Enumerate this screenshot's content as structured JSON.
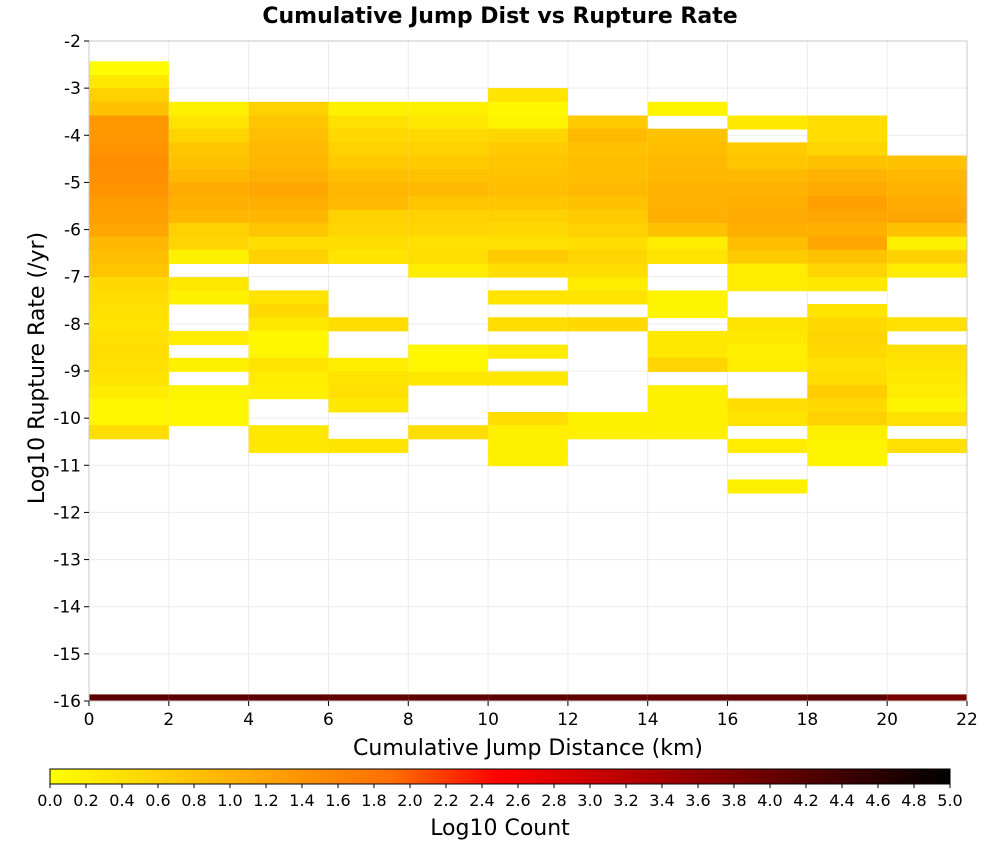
{
  "chart_data": {
    "type": "heatmap",
    "title": "Cumulative Jump Dist vs Rupture Rate",
    "xlabel": "Cumulative Jump Distance (km)",
    "ylabel": "Log10 Rupture Rate (/yr)",
    "xlim": [
      0,
      22
    ],
    "ylim": [
      -16,
      -2
    ],
    "x_ticks": [
      "0",
      "2",
      "4",
      "6",
      "8",
      "10",
      "12",
      "14",
      "16",
      "18",
      "20",
      "22"
    ],
    "y_ticks": [
      "-2",
      "-3",
      "-4",
      "-5",
      "-6",
      "-7",
      "-8",
      "-9",
      "-10",
      "-11",
      "-12",
      "-13",
      "-14",
      "-15",
      "-16"
    ],
    "grid": true,
    "x_bin_width": 2,
    "y_bin_height": 0.2863,
    "colorbar": {
      "label": "Log10 Count",
      "range": [
        0,
        5
      ],
      "ticks": [
        "0.0",
        "0.2",
        "0.4",
        "0.6",
        "0.8",
        "1.0",
        "1.2",
        "1.4",
        "1.6",
        "1.8",
        "2.0",
        "2.2",
        "2.4",
        "2.6",
        "2.8",
        "3.0",
        "3.2",
        "3.4",
        "3.6",
        "3.8",
        "4.0",
        "4.2",
        "4.4",
        "4.6",
        "4.8",
        "5.0"
      ],
      "placement": "bottom"
    },
    "columns": [
      {
        "x": 0,
        "cells": [
          [
            -2.43,
            0.05
          ],
          [
            -2.72,
            0.3
          ],
          [
            -3.0,
            0.6
          ],
          [
            -3.29,
            0.8
          ],
          [
            -3.58,
            1.35
          ],
          [
            -3.86,
            1.35
          ],
          [
            -4.15,
            1.4
          ],
          [
            -4.43,
            1.5
          ],
          [
            -4.72,
            1.45
          ],
          [
            -5.0,
            1.4
          ],
          [
            -5.29,
            1.3
          ],
          [
            -5.58,
            1.25
          ],
          [
            -5.86,
            1.15
          ],
          [
            -6.15,
            0.95
          ],
          [
            -6.43,
            0.85
          ],
          [
            -6.72,
            0.75
          ],
          [
            -7.01,
            0.5
          ],
          [
            -7.29,
            0.45
          ],
          [
            -7.58,
            0.4
          ],
          [
            -7.86,
            0.35
          ],
          [
            -8.15,
            0.4
          ],
          [
            -8.44,
            0.45
          ],
          [
            -8.72,
            0.4
          ],
          [
            -9.01,
            0.35
          ],
          [
            -9.3,
            0.25
          ],
          [
            -9.58,
            0.12
          ],
          [
            -9.87,
            0.1
          ],
          [
            -10.15,
            0.45
          ]
        ]
      },
      {
        "x": 2,
        "cells": [
          [
            -3.29,
            0.2
          ],
          [
            -3.58,
            0.35
          ],
          [
            -3.86,
            0.55
          ],
          [
            -4.15,
            0.75
          ],
          [
            -4.43,
            0.8
          ],
          [
            -4.72,
            0.95
          ],
          [
            -5.0,
            1.1
          ],
          [
            -5.29,
            1.05
          ],
          [
            -5.58,
            0.95
          ],
          [
            -5.86,
            0.6
          ],
          [
            -6.15,
            0.55
          ],
          [
            -6.43,
            0.2
          ],
          [
            -7.01,
            0.3
          ],
          [
            -7.29,
            0.2
          ],
          [
            -8.15,
            0.25
          ],
          [
            -8.72,
            0.2
          ],
          [
            -9.3,
            0.15
          ],
          [
            -9.58,
            0.1
          ],
          [
            -9.87,
            0.1
          ]
        ]
      },
      {
        "x": 4,
        "cells": [
          [
            -3.29,
            0.6
          ],
          [
            -3.58,
            0.75
          ],
          [
            -3.86,
            0.85
          ],
          [
            -4.15,
            0.9
          ],
          [
            -4.43,
            0.95
          ],
          [
            -4.72,
            1.05
          ],
          [
            -5.0,
            1.15
          ],
          [
            -5.29,
            1.05
          ],
          [
            -5.58,
            0.95
          ],
          [
            -5.86,
            0.75
          ],
          [
            -6.15,
            0.45
          ],
          [
            -6.43,
            0.6
          ],
          [
            -7.29,
            0.35
          ],
          [
            -7.58,
            0.5
          ],
          [
            -7.86,
            0.3
          ],
          [
            -8.15,
            0.1
          ],
          [
            -8.44,
            0.1
          ],
          [
            -8.72,
            0.35
          ],
          [
            -9.01,
            0.25
          ],
          [
            -9.3,
            0.2
          ],
          [
            -10.15,
            0.3
          ],
          [
            -10.44,
            0.3
          ]
        ]
      },
      {
        "x": 6,
        "cells": [
          [
            -3.29,
            0.2
          ],
          [
            -3.58,
            0.4
          ],
          [
            -3.86,
            0.5
          ],
          [
            -4.15,
            0.6
          ],
          [
            -4.43,
            0.7
          ],
          [
            -4.72,
            0.85
          ],
          [
            -5.0,
            0.95
          ],
          [
            -5.29,
            0.9
          ],
          [
            -5.58,
            0.6
          ],
          [
            -5.86,
            0.55
          ],
          [
            -6.15,
            0.45
          ],
          [
            -6.43,
            0.35
          ],
          [
            -7.86,
            0.45
          ],
          [
            -8.72,
            0.25
          ],
          [
            -9.01,
            0.35
          ],
          [
            -9.3,
            0.4
          ],
          [
            -9.58,
            0.3
          ],
          [
            -10.44,
            0.35
          ]
        ]
      },
      {
        "x": 8,
        "cells": [
          [
            -3.29,
            0.2
          ],
          [
            -3.58,
            0.3
          ],
          [
            -3.86,
            0.5
          ],
          [
            -4.15,
            0.6
          ],
          [
            -4.43,
            0.7
          ],
          [
            -4.72,
            0.8
          ],
          [
            -5.0,
            0.9
          ],
          [
            -5.29,
            0.75
          ],
          [
            -5.58,
            0.6
          ],
          [
            -5.86,
            0.55
          ],
          [
            -6.15,
            0.4
          ],
          [
            -6.43,
            0.45
          ],
          [
            -6.72,
            0.25
          ],
          [
            -8.44,
            0.1
          ],
          [
            -8.72,
            0.1
          ],
          [
            -9.01,
            0.3
          ],
          [
            -10.15,
            0.45
          ]
        ]
      },
      {
        "x": 10,
        "cells": [
          [
            -3.0,
            0.35
          ],
          [
            -3.29,
            0.1
          ],
          [
            -3.58,
            0.15
          ],
          [
            -3.86,
            0.55
          ],
          [
            -4.15,
            0.7
          ],
          [
            -4.43,
            0.75
          ],
          [
            -4.72,
            0.8
          ],
          [
            -5.0,
            0.85
          ],
          [
            -5.29,
            0.75
          ],
          [
            -5.58,
            0.6
          ],
          [
            -5.86,
            0.5
          ],
          [
            -6.15,
            0.4
          ],
          [
            -6.43,
            0.7
          ],
          [
            -6.72,
            0.45
          ],
          [
            -7.29,
            0.35
          ],
          [
            -7.86,
            0.45
          ],
          [
            -8.44,
            0.25
          ],
          [
            -9.01,
            0.3
          ],
          [
            -9.87,
            0.45
          ],
          [
            -10.15,
            0.2
          ],
          [
            -10.44,
            0.2
          ],
          [
            -10.72,
            0.2
          ]
        ]
      },
      {
        "x": 12,
        "cells": [
          [
            -3.58,
            0.7
          ],
          [
            -3.86,
            0.9
          ],
          [
            -4.15,
            0.8
          ],
          [
            -4.43,
            0.85
          ],
          [
            -4.72,
            0.85
          ],
          [
            -5.0,
            0.9
          ],
          [
            -5.29,
            0.8
          ],
          [
            -5.58,
            0.7
          ],
          [
            -5.86,
            0.6
          ],
          [
            -6.15,
            0.45
          ],
          [
            -6.43,
            0.55
          ],
          [
            -6.72,
            0.45
          ],
          [
            -7.01,
            0.25
          ],
          [
            -7.29,
            0.35
          ],
          [
            -7.86,
            0.5
          ],
          [
            -9.87,
            0.2
          ],
          [
            -10.15,
            0.2
          ]
        ]
      },
      {
        "x": 14,
        "cells": [
          [
            -3.29,
            0.15
          ],
          [
            -3.86,
            0.8
          ],
          [
            -4.15,
            0.85
          ],
          [
            -4.43,
            0.9
          ],
          [
            -4.72,
            0.95
          ],
          [
            -5.0,
            1.0
          ],
          [
            -5.29,
            1.0
          ],
          [
            -5.58,
            1.05
          ],
          [
            -5.86,
            0.8
          ],
          [
            -6.15,
            0.25
          ],
          [
            -6.43,
            0.35
          ],
          [
            -7.29,
            0.15
          ],
          [
            -7.58,
            0.15
          ],
          [
            -8.15,
            0.3
          ],
          [
            -8.44,
            0.3
          ],
          [
            -8.72,
            0.55
          ],
          [
            -9.3,
            0.2
          ],
          [
            -9.58,
            0.2
          ],
          [
            -9.87,
            0.2
          ],
          [
            -10.15,
            0.2
          ]
        ]
      },
      {
        "x": 16,
        "cells": [
          [
            -3.58,
            0.3
          ],
          [
            -4.15,
            0.7
          ],
          [
            -4.43,
            0.75
          ],
          [
            -4.72,
            0.9
          ],
          [
            -5.0,
            1.0
          ],
          [
            -5.29,
            1.05
          ],
          [
            -5.58,
            1.1
          ],
          [
            -5.86,
            1.05
          ],
          [
            -6.15,
            0.85
          ],
          [
            -6.43,
            0.7
          ],
          [
            -6.72,
            0.25
          ],
          [
            -7.01,
            0.25
          ],
          [
            -7.86,
            0.35
          ],
          [
            -8.15,
            0.3
          ],
          [
            -8.44,
            0.2
          ],
          [
            -8.72,
            0.25
          ],
          [
            -9.58,
            0.45
          ],
          [
            -9.87,
            0.35
          ],
          [
            -10.44,
            0.25
          ],
          [
            -11.3,
            0.2
          ]
        ]
      },
      {
        "x": 18,
        "cells": [
          [
            -3.58,
            0.45
          ],
          [
            -3.86,
            0.45
          ],
          [
            -4.15,
            0.55
          ],
          [
            -4.43,
            0.8
          ],
          [
            -4.72,
            1.0
          ],
          [
            -5.0,
            1.1
          ],
          [
            -5.29,
            1.25
          ],
          [
            -5.58,
            1.15
          ],
          [
            -5.86,
            1.05
          ],
          [
            -6.15,
            1.15
          ],
          [
            -6.43,
            0.8
          ],
          [
            -6.72,
            0.55
          ],
          [
            -7.01,
            0.3
          ],
          [
            -7.58,
            0.35
          ],
          [
            -7.86,
            0.5
          ],
          [
            -8.15,
            0.55
          ],
          [
            -8.44,
            0.5
          ],
          [
            -8.72,
            0.4
          ],
          [
            -9.01,
            0.45
          ],
          [
            -9.3,
            0.65
          ],
          [
            -9.58,
            0.5
          ],
          [
            -9.87,
            0.6
          ],
          [
            -10.15,
            0.2
          ],
          [
            -10.44,
            0.15
          ],
          [
            -10.72,
            0.15
          ]
        ]
      },
      {
        "x": 20,
        "cells": [
          [
            -4.43,
            0.8
          ],
          [
            -4.72,
            0.95
          ],
          [
            -5.0,
            1.0
          ],
          [
            -5.29,
            1.1
          ],
          [
            -5.58,
            1.15
          ],
          [
            -5.86,
            0.8
          ],
          [
            -6.15,
            0.2
          ],
          [
            -6.43,
            0.6
          ],
          [
            -6.72,
            0.25
          ],
          [
            -7.86,
            0.4
          ],
          [
            -8.44,
            0.4
          ],
          [
            -8.72,
            0.35
          ],
          [
            -9.01,
            0.3
          ],
          [
            -9.3,
            0.25
          ],
          [
            -9.58,
            0.15
          ],
          [
            -9.87,
            0.4
          ],
          [
            -10.44,
            0.4
          ]
        ]
      }
    ],
    "baseline_row": {
      "y": -16.0,
      "height": 0.14,
      "values": [
        4.1,
        4.1,
        4.1,
        4.05,
        4.1,
        4.1,
        4.05,
        4.05,
        4.05,
        4.1,
        3.85
      ]
    }
  }
}
